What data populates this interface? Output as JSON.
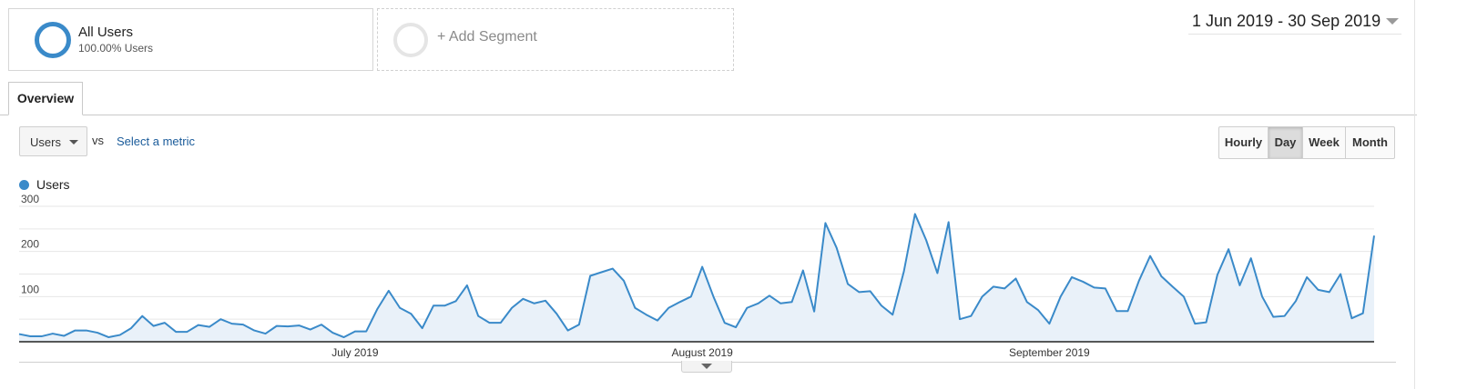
{
  "segments": {
    "all_users": {
      "title": "All Users",
      "subtitle": "100.00% Users"
    },
    "add_segment_label": "+ Add Segment"
  },
  "date_range": "1 Jun 2019 - 30 Sep 2019",
  "tabs": [
    {
      "label": "Overview",
      "active": true
    }
  ],
  "metric_select": {
    "selected": "Users",
    "vs_label": "vs",
    "secondary_link": "Select a metric"
  },
  "granularity": {
    "options": [
      "Hourly",
      "Day",
      "Week",
      "Month"
    ],
    "selected": "Day"
  },
  "legend": {
    "label": "Users",
    "color": "#3a8ac9"
  },
  "colors": {
    "line": "#3a8ac9",
    "fill": "#e9f1f9",
    "grid": "#e6e6e6",
    "axis": "#222222"
  },
  "chart_data": {
    "type": "area",
    "series": [
      {
        "name": "Users",
        "x_start": "1 Jun 2019",
        "x_end": "30 Sep 2019",
        "values": [
          17,
          12,
          12,
          18,
          13,
          25,
          25,
          20,
          10,
          15,
          30,
          57,
          35,
          42,
          22,
          22,
          37,
          33,
          50,
          40,
          38,
          25,
          18,
          35,
          34,
          36,
          27,
          38,
          20,
          10,
          23,
          23,
          73,
          113,
          75,
          62,
          30,
          80,
          80,
          90,
          125,
          57,
          42,
          42,
          75,
          95,
          85,
          91,
          62,
          25,
          38,
          146,
          154,
          162,
          135,
          75,
          60,
          47,
          75,
          88,
          100,
          166,
          100,
          42,
          32,
          75,
          85,
          102,
          85,
          88,
          158,
          67,
          263,
          208,
          128,
          110,
          112,
          80,
          60,
          155,
          283,
          225,
          152,
          265,
          50,
          57,
          100,
          122,
          118,
          140,
          88,
          70,
          40,
          100,
          143,
          133,
          120,
          118,
          68,
          68,
          135,
          190,
          145,
          122,
          100,
          40,
          43,
          148,
          205,
          125,
          185,
          100,
          55,
          57,
          90,
          143,
          115,
          110,
          150,
          52,
          63,
          235
        ]
      }
    ],
    "x_tick_labels": [
      "July 2019",
      "August 2019",
      "September 2019"
    ],
    "y_tick_labels": [
      "100",
      "200",
      "300"
    ],
    "ylim": [
      0,
      300
    ],
    "grid": true
  },
  "expand_caret_icon": "caret-down-icon"
}
